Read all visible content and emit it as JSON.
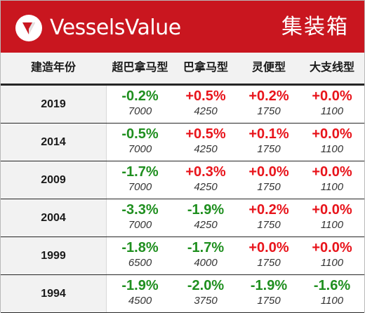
{
  "header": {
    "brand": "VesselsValue",
    "title": "集装箱",
    "logo_icon": "vesselsvalue-logo-icon",
    "background": "#c9161f"
  },
  "table": {
    "columns": [
      "建造年份",
      "超巴拿马型",
      "巴拿马型",
      "灵便型",
      "大支线型"
    ],
    "rows": [
      {
        "year": "2019",
        "cells": [
          {
            "change": "-0.2%",
            "base": "7000"
          },
          {
            "change": "+0.5%",
            "base": "4250"
          },
          {
            "change": "+0.2%",
            "base": "1750"
          },
          {
            "change": "+0.0%",
            "base": "1100"
          }
        ]
      },
      {
        "year": "2014",
        "cells": [
          {
            "change": "-0.5%",
            "base": "7000"
          },
          {
            "change": "+0.5%",
            "base": "4250"
          },
          {
            "change": "+0.1%",
            "base": "1750"
          },
          {
            "change": "+0.0%",
            "base": "1100"
          }
        ]
      },
      {
        "year": "2009",
        "cells": [
          {
            "change": "-1.7%",
            "base": "7000"
          },
          {
            "change": "+0.3%",
            "base": "4250"
          },
          {
            "change": "+0.0%",
            "base": "1750"
          },
          {
            "change": "+0.0%",
            "base": "1100"
          }
        ]
      },
      {
        "year": "2004",
        "cells": [
          {
            "change": "-3.3%",
            "base": "7000"
          },
          {
            "change": "-1.9%",
            "base": "4250"
          },
          {
            "change": "+0.2%",
            "base": "1750"
          },
          {
            "change": "+0.0%",
            "base": "1100"
          }
        ]
      },
      {
        "year": "1999",
        "cells": [
          {
            "change": "-1.8%",
            "base": "6500"
          },
          {
            "change": "-1.7%",
            "base": "4000"
          },
          {
            "change": "+0.0%",
            "base": "1750"
          },
          {
            "change": "+0.0%",
            "base": "1100"
          }
        ]
      },
      {
        "year": "1994",
        "cells": [
          {
            "change": "-1.9%",
            "base": "4500"
          },
          {
            "change": "-2.0%",
            "base": "3750"
          },
          {
            "change": "-1.9%",
            "base": "1750"
          },
          {
            "change": "-1.6%",
            "base": "1100"
          }
        ]
      }
    ]
  },
  "colors": {
    "positive": "#e8141b",
    "negative": "#1f8f1f",
    "header_bg": "#c9161f",
    "row_label_bg": "#f2f2f2"
  }
}
